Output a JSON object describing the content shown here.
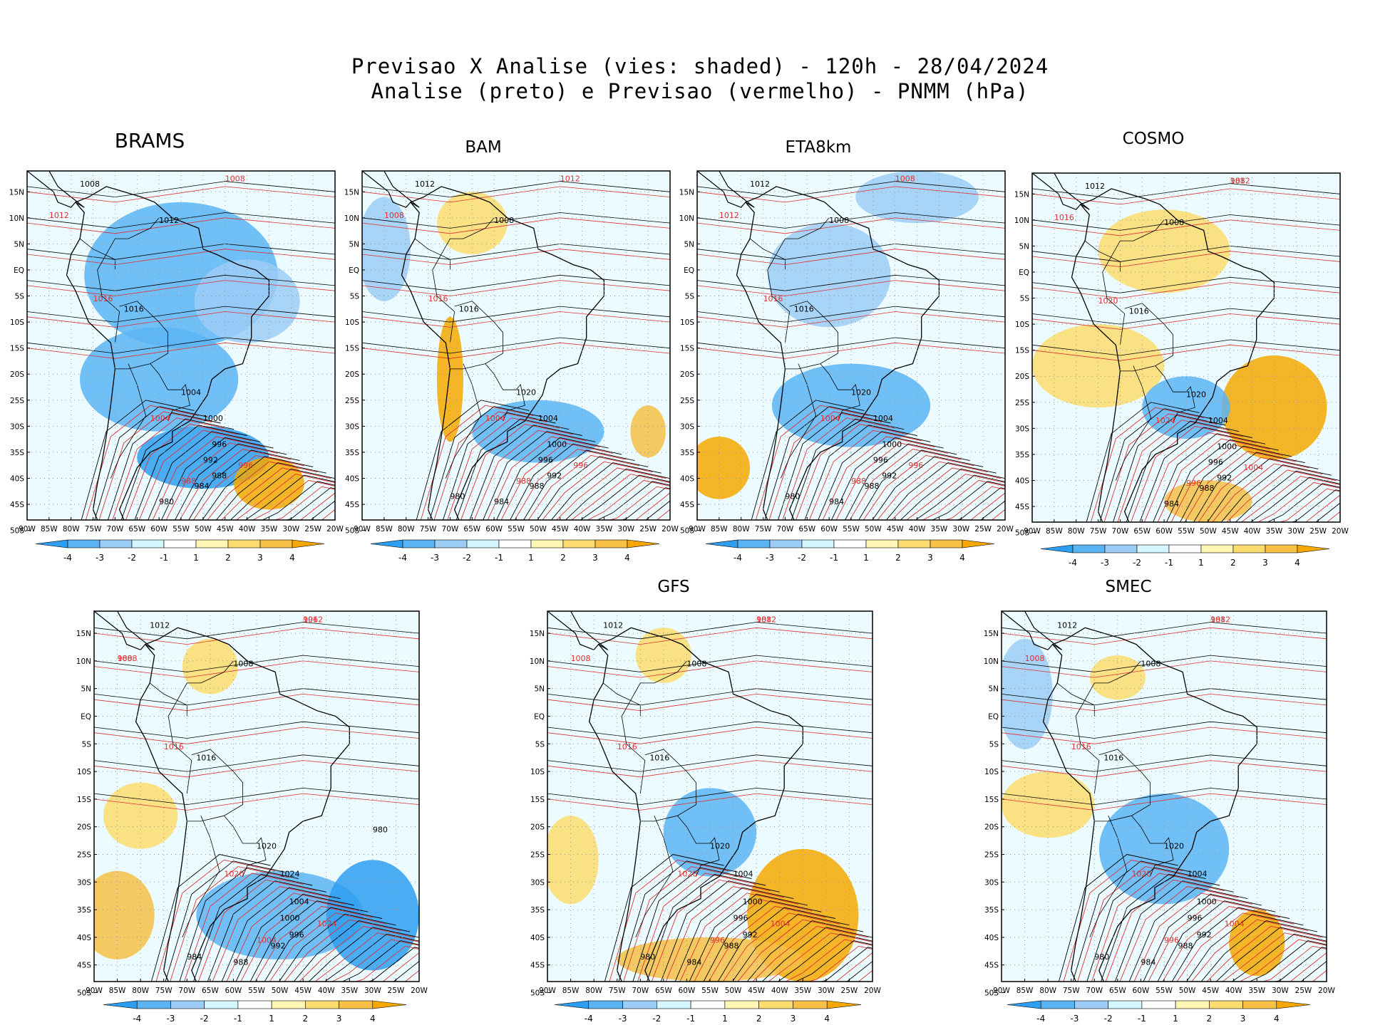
{
  "header": {
    "line1": "Previsao X Analise (vies: shaded) - 120h - 28/04/2024",
    "line2": "Analise (preto) e Previsao (vermelho) - PNMM (hPa)"
  },
  "axes": {
    "lat_labels": [
      "15N",
      "10N",
      "5N",
      "EQ",
      "5S",
      "10S",
      "15S",
      "20S",
      "25S",
      "30S",
      "35S",
      "40S",
      "45S",
      "50S"
    ],
    "lon_labels": [
      "90W",
      "85W",
      "80W",
      "75W",
      "70W",
      "65W",
      "60W",
      "55W",
      "50W",
      "45W",
      "40W",
      "35W",
      "30W",
      "25W",
      "20W"
    ]
  },
  "colorbar": {
    "ticks": [
      "-4",
      "-3",
      "-2",
      "-1",
      "1",
      "2",
      "3",
      "4"
    ],
    "colors": [
      "#2e9ef0",
      "#5ab4f4",
      "#9ccdf7",
      "#d4f7ff",
      "#ffffff",
      "#fff5b4",
      "#fcdc6e",
      "#f7c046",
      "#f6a800"
    ]
  },
  "panels": [
    {
      "name": "BRAMS",
      "isobar_labels": [
        "1008",
        "1012",
        "1016",
        "1004",
        "1000",
        "996",
        "992",
        "988",
        "984",
        "980"
      ],
      "forecast_labels": [
        "1008",
        "1012",
        "1016",
        "1004",
        "996",
        "988"
      ]
    },
    {
      "name": "BAM",
      "isobar_labels": [
        "1012",
        "1008",
        "1016",
        "1020",
        "1004",
        "1000",
        "996",
        "992",
        "988",
        "984",
        "980"
      ],
      "forecast_labels": [
        "1012",
        "1008",
        "1016",
        "1004",
        "996",
        "988"
      ]
    },
    {
      "name": "ETA8km",
      "isobar_labels": [
        "1012",
        "1008",
        "1016",
        "1020",
        "1004",
        "1000",
        "996",
        "992",
        "988",
        "984",
        "980"
      ],
      "forecast_labels": [
        "1008",
        "1012",
        "1016",
        "1004",
        "996",
        "988"
      ]
    },
    {
      "name": "COSMO",
      "isobar_labels": [
        "1012",
        "1008",
        "1016",
        "1020",
        "1004",
        "1000",
        "996",
        "992",
        "988",
        "984"
      ],
      "forecast_labels": [
        "1012",
        "1016",
        "1020",
        "1024",
        "1004",
        "996",
        "988"
      ]
    },
    {
      "name": "",
      "isobar_labels": [
        "1012",
        "1008",
        "1016",
        "1020",
        "1024",
        "1004",
        "1000",
        "996",
        "992",
        "988",
        "984",
        "980"
      ],
      "forecast_labels": [
        "1012",
        "1008",
        "1016",
        "1020",
        "1024",
        "1004",
        "996",
        "988"
      ]
    },
    {
      "name": "GFS",
      "isobar_labels": [
        "1012",
        "1008",
        "1016",
        "1020",
        "1004",
        "1000",
        "996",
        "992",
        "988",
        "984",
        "980"
      ],
      "forecast_labels": [
        "1012",
        "1008",
        "1016",
        "1020",
        "1004",
        "996",
        "988"
      ]
    },
    {
      "name": "SMEC",
      "isobar_labels": [
        "1012",
        "1008",
        "1016",
        "1020",
        "1004",
        "1000",
        "996",
        "992",
        "988",
        "984",
        "980"
      ],
      "forecast_labels": [
        "1012",
        "1008",
        "1016",
        "1020",
        "1004",
        "996",
        "988"
      ]
    }
  ]
}
